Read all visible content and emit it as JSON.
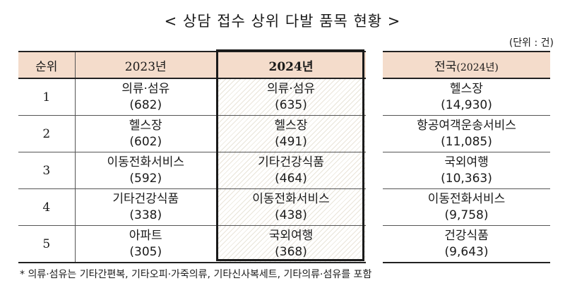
{
  "title": "< 상담 접수 상위 다발 품목 현황 >",
  "unit": "(단위 : 건)",
  "headers": {
    "rank": "순위",
    "y2023": "2023년",
    "y2024": "2024년",
    "national": "전국",
    "national_sub": "(2024년)"
  },
  "rows": [
    {
      "rank": "1",
      "y2023": {
        "item": "의류·섬유",
        "count": "(682)"
      },
      "y2024": {
        "item": "의류·섬유",
        "count": "(635)"
      },
      "national": {
        "item": "헬스장",
        "count": "(14,930)"
      }
    },
    {
      "rank": "2",
      "y2023": {
        "item": "헬스장",
        "count": "(602)"
      },
      "y2024": {
        "item": "헬스장",
        "count": "(491)"
      },
      "national": {
        "item": "항공여객운송서비스",
        "count": "(11,085)"
      }
    },
    {
      "rank": "3",
      "y2023": {
        "item": "이동전화서비스",
        "count": "(592)"
      },
      "y2024": {
        "item": "기타건강식품",
        "count": "(464)"
      },
      "national": {
        "item": "국외여행",
        "count": "(10,363)"
      }
    },
    {
      "rank": "4",
      "y2023": {
        "item": "기타건강식품",
        "count": "(338)"
      },
      "y2024": {
        "item": "이동전화서비스",
        "count": "(438)"
      },
      "national": {
        "item": "이동전화서비스",
        "count": "(9,758)"
      }
    },
    {
      "rank": "5",
      "y2023": {
        "item": "아파트",
        "count": "(305)"
      },
      "y2024": {
        "item": "국외여행",
        "count": "(368)"
      },
      "national": {
        "item": "건강식품",
        "count": "(9,643)"
      }
    }
  ],
  "footnote": "* 의류·섬유는 기타간편복, 기타오피·가죽의류, 기타신사복세트, 기타의류·섬유를 포함"
}
